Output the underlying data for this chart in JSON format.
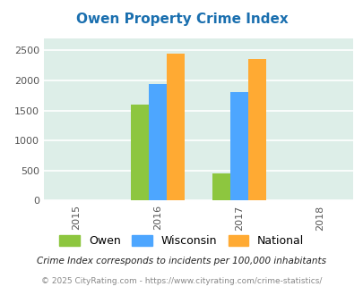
{
  "title": "Owen Property Crime Index",
  "title_color": "#1a6faf",
  "years": [
    2016,
    2017
  ],
  "x_ticks": [
    2015,
    2016,
    2017,
    2018
  ],
  "categories": [
    "Owen",
    "Wisconsin",
    "National"
  ],
  "values": {
    "Owen": [
      1600,
      450
    ],
    "Wisconsin": [
      1940,
      1800
    ],
    "National": [
      2440,
      2350
    ]
  },
  "colors": {
    "Owen": "#8dc63f",
    "Wisconsin": "#4da6ff",
    "National": "#ffaa33"
  },
  "ylim": [
    0,
    2700
  ],
  "yticks": [
    0,
    500,
    1000,
    1500,
    2000,
    2500
  ],
  "bar_width": 0.22,
  "background_color": "#ddeee8",
  "grid_color": "#ffffff",
  "footer_note": "Crime Index corresponds to incidents per 100,000 inhabitants",
  "footer_copy": "© 2025 CityRating.com - https://www.cityrating.com/crime-statistics/",
  "legend_labels": [
    "Owen",
    "Wisconsin",
    "National"
  ]
}
